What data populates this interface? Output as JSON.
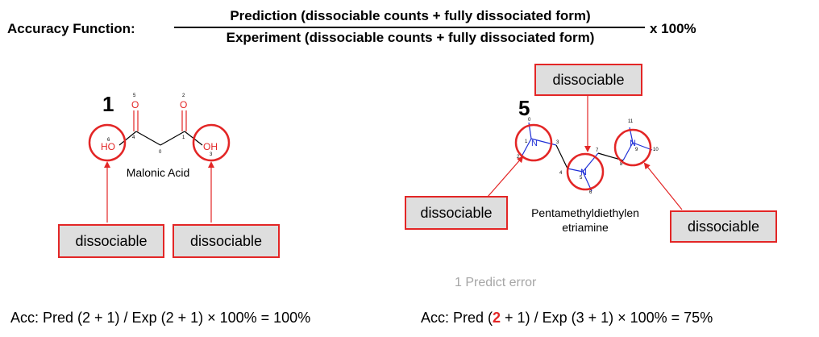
{
  "header": {
    "title": "Accuracy Function:",
    "numerator": "Prediction (dissociable counts + fully dissociated form)",
    "denominator": "Experiment  (dissociable counts + fully dissociated form)",
    "multiplier": "x 100%"
  },
  "compound1": {
    "number": "1",
    "name": "Malonic Acid",
    "atoms": {
      "o_top_left": "O",
      "o_top_right": "O",
      "ho_left": "HO",
      "oh_right": "OH",
      "idx_5": "5",
      "idx_2": "2",
      "idx_6": "6",
      "idx_4": "4",
      "idx_0": "0",
      "idx_1": "1",
      "idx_3": "3"
    },
    "tags": [
      "dissociable",
      "dissociable"
    ],
    "accuracy": {
      "prefix": "Acc: Pred (2 + 1) / Exp (2 + 1) × 100% = 100%"
    }
  },
  "compound5": {
    "number": "5",
    "name_line1": "Pentamethyldiethylen",
    "name_line2": "etriamine",
    "atoms": {
      "n1": "N",
      "n2": "N",
      "n3": "N",
      "idx_0": "0",
      "idx_1": "1",
      "idx_2": "2",
      "idx_3": "3",
      "idx_4": "4",
      "idx_5": "5",
      "idx_6": "6",
      "idx_7": "7",
      "idx_8": "8",
      "idx_9": "9",
      "idx_10": "10",
      "idx_11": "11"
    },
    "tags": [
      "dissociable",
      "dissociable",
      "dissociable"
    ],
    "note": "1 Predict error",
    "accuracy": {
      "prefix": "Acc: Pred (",
      "highlight": "2",
      "suffix": " + 1) / Exp (3 + 1) × 100% = 75%"
    }
  },
  "colors": {
    "accent_red": "#e32626",
    "tag_fill": "#dedede",
    "atom_red": "#e32626",
    "atom_blue": "#1f2fd6",
    "note_gray": "#a6a6a6"
  }
}
